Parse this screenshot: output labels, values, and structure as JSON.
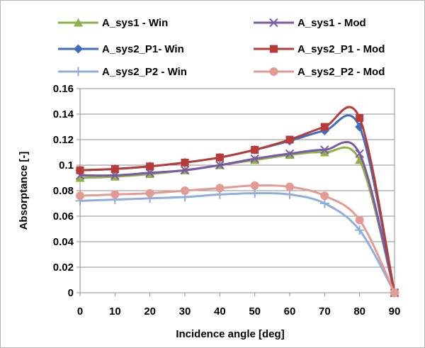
{
  "chart_data": {
    "type": "line",
    "title": "",
    "xlabel": "Incidence angle [deg]",
    "ylabel": "Absorptance [-]",
    "x": [
      0,
      10,
      20,
      30,
      40,
      50,
      60,
      70,
      80,
      90
    ],
    "xticks": [
      "0",
      "10",
      "20",
      "30",
      "40",
      "50",
      "60",
      "70",
      "80",
      "90"
    ],
    "yticks": [
      "0",
      "0.02",
      "0.04",
      "0.06",
      "0.08",
      "0.1",
      "0.12",
      "0.14",
      "0.16"
    ],
    "xlim": [
      0,
      90
    ],
    "ylim": [
      0,
      0.16
    ],
    "grid": "horizontal",
    "legend_position": "top",
    "series": [
      {
        "name": "A_sys1 - Win",
        "color": "#8EB045",
        "marker": "triangle",
        "values": [
          0.09,
          0.091,
          0.093,
          0.096,
          0.1,
          0.104,
          0.108,
          0.11,
          0.104,
          0
        ]
      },
      {
        "name": "A_sys1 - Mod",
        "color": "#7A59A8",
        "marker": "x",
        "values": [
          0.092,
          0.092,
          0.094,
          0.096,
          0.1,
          0.105,
          0.109,
          0.112,
          0.109,
          0
        ]
      },
      {
        "name": "A_sys2_P1- Win",
        "color": "#3F6EBF",
        "marker": "diamond",
        "values": [
          0.096,
          0.097,
          0.099,
          0.102,
          0.106,
          0.112,
          0.119,
          0.127,
          0.13,
          0
        ]
      },
      {
        "name": "A_sys2_P1 - Mod",
        "color": "#B83B38",
        "marker": "square",
        "values": [
          0.096,
          0.097,
          0.099,
          0.102,
          0.106,
          0.112,
          0.12,
          0.13,
          0.137,
          0
        ]
      },
      {
        "name": "A_sys2_P2 - Win",
        "color": "#8FAEDD",
        "marker": "plus",
        "values": [
          0.072,
          0.073,
          0.074,
          0.075,
          0.077,
          0.078,
          0.077,
          0.07,
          0.049,
          0
        ]
      },
      {
        "name": "A_sys2_P2 - Mod",
        "color": "#E39A92",
        "marker": "circle",
        "values": [
          0.076,
          0.077,
          0.078,
          0.08,
          0.082,
          0.084,
          0.083,
          0.076,
          0.057,
          0
        ]
      }
    ]
  }
}
